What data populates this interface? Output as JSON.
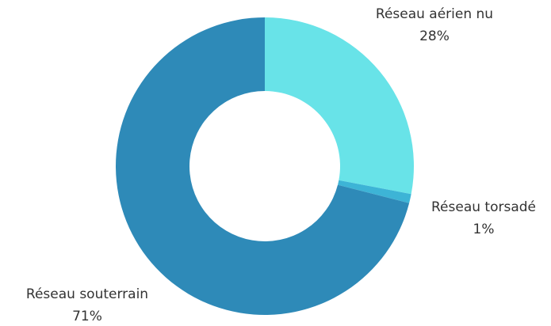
{
  "chart_data": {
    "type": "pie",
    "categories": [
      "Réseau aérien nu",
      "Réseau torsadé",
      "Réseau souterrain"
    ],
    "values": [
      28,
      1,
      71
    ],
    "value_labels": [
      "28%",
      "1%",
      "71%"
    ],
    "colors": [
      "#68e3e8",
      "#3db4d6",
      "#2e8ab8"
    ]
  }
}
